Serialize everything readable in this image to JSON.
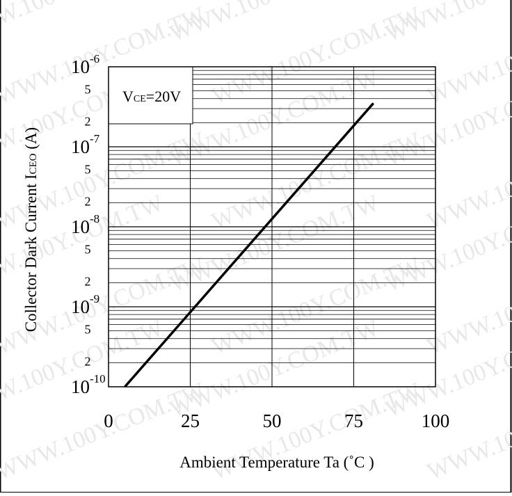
{
  "chart_data": {
    "type": "line",
    "xlabel": "Ambient Temperature Ta (˚C )",
    "ylabel": "Collector Dark Current I",
    "ylabel_sub": "CEO",
    "ylabel_tail": " (A)",
    "annotation": {
      "main": "V",
      "sub": "CE",
      "tail": "=20V"
    },
    "watermark": "WWW.100Y.COM.TW",
    "xlim": [
      0,
      100
    ],
    "ylim": [
      1e-10,
      1e-06
    ],
    "y_scale": "log",
    "grid": true,
    "x_ticks": [
      {
        "value": 0,
        "label": "0"
      },
      {
        "value": 25,
        "label": "25"
      },
      {
        "value": 50,
        "label": "50"
      },
      {
        "value": 75,
        "label": "75"
      },
      {
        "value": 100,
        "label": "100"
      }
    ],
    "y_major_ticks": [
      {
        "value": 1e-06,
        "base": "10",
        "exp": "-6"
      },
      {
        "value": 1e-07,
        "base": "10",
        "exp": "-7"
      },
      {
        "value": 1e-08,
        "base": "10",
        "exp": "-8"
      },
      {
        "value": 1e-09,
        "base": "10",
        "exp": "-9"
      },
      {
        "value": 1e-10,
        "base": "10",
        "exp": "-10"
      }
    ],
    "y_minor_ticks": [
      {
        "value": 5e-07,
        "label": "5"
      },
      {
        "value": 2e-07,
        "label": "2"
      },
      {
        "value": 5e-08,
        "label": "5"
      },
      {
        "value": 2e-08,
        "label": "2"
      },
      {
        "value": 5e-09,
        "label": "5"
      },
      {
        "value": 2e-09,
        "label": "2"
      },
      {
        "value": 5e-10,
        "label": "5"
      },
      {
        "value": 2e-10,
        "label": "2"
      }
    ],
    "series": [
      {
        "x": [
          5,
          81
        ],
        "y": [
          1e-10,
          3.5e-07
        ],
        "color": "#000000"
      }
    ]
  }
}
